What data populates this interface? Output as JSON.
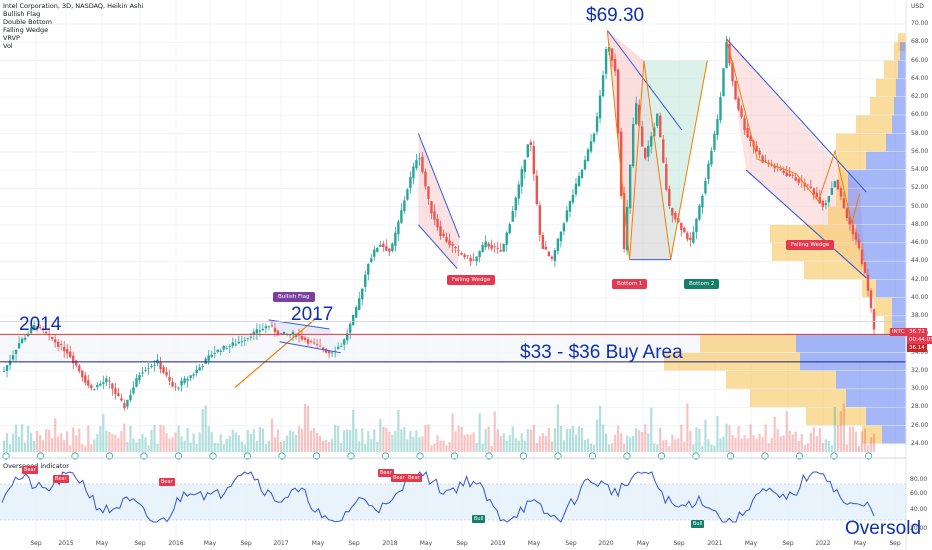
{
  "header": {
    "symbol_line": "Intel Corporation, 3D, NASDAQ, Heikin Ashi",
    "indicators": [
      "Bullish Flag",
      "Double Bottom",
      "Falling Wedge",
      "VRVP",
      "Vol"
    ],
    "currency": "USD"
  },
  "annotations": {
    "peak_price": "$69.30",
    "year_2014": "2014",
    "year_2017": "2017",
    "buy_area": "$33 - $36 Buy Area",
    "oversold": "Oversold"
  },
  "labels": {
    "bullish_flag": "Bullish Flag",
    "falling_wedge_1": "Falling Wedge",
    "falling_wedge_2": "Falling Wedge",
    "bottom_1": "Bottom 1",
    "bottom_2": "Bottom 2"
  },
  "price_tags": {
    "ticker": "INTC",
    "last": "36.72",
    "countdown": "00:44:05",
    "level": "36.14"
  },
  "oscillator": {
    "title": "Overspeed indicator",
    "bear_label": "Bear",
    "bull_label": "Bull",
    "yticks": [
      "80.00",
      "60.00",
      "40.00",
      "20.00"
    ]
  },
  "colors": {
    "bull": "#26a69a",
    "bear": "#ef5350",
    "annotation_blue": "#0d2fb0",
    "pattern_line": "#3b5bdb",
    "flag_orange": "#f57c00",
    "vp_up": "#f7c75a",
    "vp_down": "#5b7cf0",
    "buy_line": "#e53935"
  },
  "chart_data": {
    "type": "line",
    "title": "Intel Corporation, 3D, NASDAQ, Heikin Ashi",
    "ylabel": "USD",
    "ylim": [
      24,
      70
    ],
    "yticks": [
      "70.00",
      "68.00",
      "66.00",
      "64.00",
      "62.00",
      "60.00",
      "58.00",
      "56.00",
      "54.00",
      "52.00",
      "50.00",
      "48.00",
      "46.00",
      "44.00",
      "42.00",
      "40.00",
      "38.00",
      "36.00",
      "34.00",
      "32.00",
      "30.00",
      "28.00",
      "26.00",
      "24.00"
    ],
    "xticks": [
      "Sep",
      "2015",
      "May",
      "Sep",
      "2016",
      "May",
      "Sep",
      "2017",
      "May",
      "Sep",
      "2018",
      "May",
      "Sep",
      "2019",
      "May",
      "Sep",
      "2020",
      "May",
      "Sep",
      "2021",
      "May",
      "Sep",
      "2022",
      "May",
      "Sep"
    ],
    "grid": true,
    "series": [
      {
        "x": [
          2014.62,
          2014.75,
          2014.9,
          2015.0,
          2015.2,
          2015.4,
          2015.55,
          2015.7,
          2015.85,
          2016.0,
          2016.15,
          2016.35,
          2016.5,
          2016.7,
          2016.85,
          2017.0,
          2017.1,
          2017.25,
          2017.4,
          2017.55,
          2017.67,
          2017.8,
          2017.9,
          2018.0,
          2018.1,
          2018.25,
          2018.35,
          2018.45,
          2018.55,
          2018.7,
          2018.85,
          2018.95,
          2019.1,
          2019.25,
          2019.35,
          2019.45,
          2019.55,
          2019.7,
          2019.85,
          2019.95,
          2020.05,
          2020.12,
          2020.2,
          2020.3,
          2020.38,
          2020.5,
          2020.6,
          2020.7,
          2020.8,
          2020.88,
          2020.95,
          2021.05,
          2021.12,
          2021.2,
          2021.3,
          2021.45,
          2021.6,
          2021.75,
          2021.88,
          2022.0,
          2022.1,
          2022.2,
          2022.3,
          2022.38,
          2022.45
        ],
        "values": [
          32,
          35,
          37,
          36,
          34,
          30,
          31,
          28,
          32,
          33,
          30,
          32,
          34,
          35,
          36,
          37,
          36,
          36,
          35,
          34,
          35,
          39,
          44,
          46,
          45,
          52,
          56,
          50,
          47,
          45,
          44,
          46,
          45,
          52,
          58,
          46,
          44,
          50,
          55,
          59,
          68,
          65,
          45,
          62,
          55,
          60,
          50,
          48,
          46,
          50,
          54,
          60,
          68,
          62,
          58,
          55,
          54,
          53,
          52,
          50,
          53,
          49,
          46,
          42,
          36.7
        ]
      }
    ],
    "current_price": 36.72,
    "buy_area_range": [
      33,
      36
    ],
    "peak": 69.3
  }
}
